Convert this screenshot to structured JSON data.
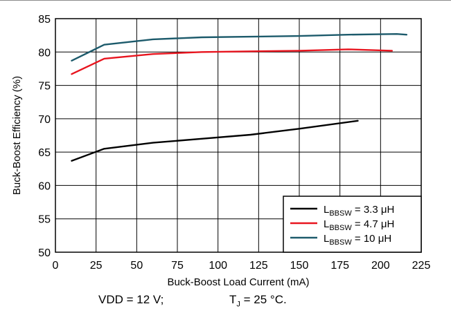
{
  "chart_data": {
    "type": "line",
    "xlabel": "Buck-Boost Load Current (mA)",
    "ylabel": "Buck-Boost Efficiency (%)",
    "xlim": [
      0,
      225
    ],
    "ylim": [
      50,
      85
    ],
    "xticks": [
      "0",
      "25",
      "50",
      "75",
      "100",
      "125",
      "150",
      "175",
      "200",
      "225"
    ],
    "yticks": [
      "50",
      "55",
      "60",
      "65",
      "70",
      "75",
      "80",
      "85"
    ],
    "grid": true,
    "legend_position": "bottom-right",
    "series": [
      {
        "name": "L_BBSW = 3.3 μH",
        "legend_main": "L",
        "legend_sub": "BBSW",
        "legend_rest": " = 3.3 μH",
        "color": "#000000",
        "x": [
          10,
          30,
          60,
          90,
          120,
          150,
          186
        ],
        "y": [
          63.7,
          65.5,
          66.4,
          67.0,
          67.6,
          68.5,
          69.7
        ]
      },
      {
        "name": "L_BBSW = 4.7 μH",
        "legend_main": "L",
        "legend_sub": "BBSW",
        "legend_rest": " = 4.7 μH",
        "color": "#e8141e",
        "x": [
          10,
          30,
          60,
          90,
          120,
          150,
          180,
          207
        ],
        "y": [
          76.7,
          79.0,
          79.7,
          80.0,
          80.1,
          80.2,
          80.4,
          80.2
        ]
      },
      {
        "name": "L_BBSW = 10 μH",
        "legend_main": "L",
        "legend_sub": "BBSW",
        "legend_rest": " = 10 μH",
        "color": "#1c5a6b",
        "x": [
          10,
          30,
          60,
          90,
          120,
          150,
          180,
          210,
          216
        ],
        "y": [
          78.7,
          81.1,
          81.9,
          82.2,
          82.3,
          82.4,
          82.6,
          82.7,
          82.6
        ]
      }
    ]
  },
  "conditions": {
    "vdd": "VDD = 12 V;",
    "tj_main": "T",
    "tj_sub": "J",
    "tj_rest": " = 25 °C."
  }
}
